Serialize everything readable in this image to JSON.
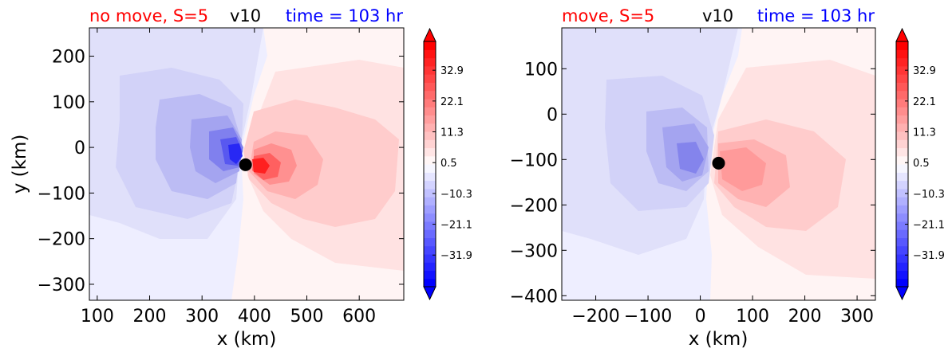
{
  "chart_data": [
    {
      "type": "heatmap",
      "title_left": "no move, S=5",
      "title_center": "v10",
      "title_right": "time = 103 hr",
      "title_colors": {
        "left": "#ff0000",
        "center": "#000000",
        "right": "#0000ff"
      },
      "xlabel": "x (km)",
      "ylabel": "y (km)",
      "xlim": [
        85,
        685
      ],
      "ylim": [
        -335,
        262
      ],
      "xticks": [
        100,
        200,
        300,
        400,
        500,
        600
      ],
      "yticks": [
        200,
        100,
        0,
        -100,
        -200,
        -300
      ],
      "center_marker": {
        "x": 383,
        "y": -38
      },
      "colorbar": {
        "vmin": -43,
        "vmax": 43,
        "ticks": [
          "32.9",
          "22.1",
          "11.3",
          "0.5",
          "−10.3",
          "−21.1",
          "−31.9"
        ],
        "extend": "both",
        "cmap": "bwr"
      }
    },
    {
      "type": "heatmap",
      "title_left": "move, S=5",
      "title_center": "v10",
      "title_right": "time = 103 hr",
      "title_colors": {
        "left": "#ff0000",
        "center": "#000000",
        "right": "#0000ff"
      },
      "xlabel": "x (km)",
      "ylabel": "",
      "xlim": [
        -265,
        335
      ],
      "ylim": [
        -410,
        190
      ],
      "xticks": [
        -200,
        -100,
        0,
        100,
        200,
        300
      ],
      "yticks": [
        100,
        0,
        -100,
        -200,
        -300,
        -400
      ],
      "center_marker": {
        "x": 35,
        "y": -108
      },
      "colorbar": {
        "vmin": -43,
        "vmax": 43,
        "ticks": [
          "32.9",
          "22.1",
          "11.3",
          "0.5",
          "−10.3",
          "−21.1",
          "−31.9"
        ],
        "extend": "both",
        "cmap": "bwr"
      }
    }
  ]
}
